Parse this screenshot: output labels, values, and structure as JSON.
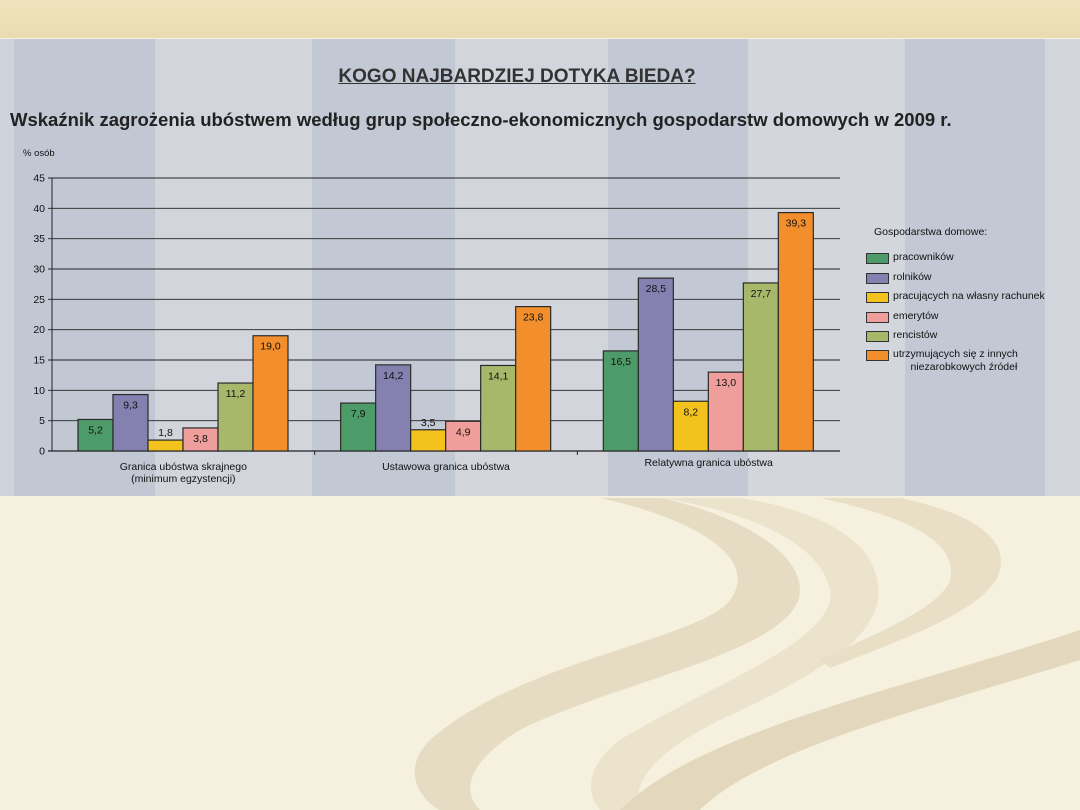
{
  "slide": {
    "headline": "KOGO NAJBARDZIEJ DOTYKA BIEDA?",
    "subtitle": "Wskaźnik zagrożenia ubóstwem według grup społeczno-ekonomicznych gospodarstw domowych w 2009 r."
  },
  "colors": {
    "background": "#f6f1de",
    "top_band": "#eadbb0",
    "panel": "#c6ccd7",
    "series": [
      "#4e9b6a",
      "#8480b0",
      "#f3c21c",
      "#f09e9c",
      "#a8b86a",
      "#f28f2c"
    ]
  },
  "chart_data": {
    "type": "bar",
    "title": "Wskaźnik zagrożenia ubóstwem według grup społeczno-ekonomicznych gospodarstw domowych w 2009 r.",
    "ylabel": "% osób",
    "ylim": [
      0,
      45
    ],
    "yticks": [
      "0",
      "5",
      "10",
      "15",
      "20",
      "25",
      "30",
      "35",
      "40",
      "45"
    ],
    "grid": true,
    "legend_position": "right",
    "legend_title": "Gospodarstwa domowe:",
    "categories": [
      [
        "Granica ubóstwa skrajnego",
        "(minimum egzystencji)"
      ],
      [
        "Ustawowa granica ubóstwa"
      ],
      [
        "Relatywna granica ubóstwa"
      ]
    ],
    "series": [
      {
        "name": "pracowników",
        "values": [
          5.2,
          7.9,
          16.5
        ],
        "labels": [
          "5,2",
          "7,9",
          "16,5"
        ]
      },
      {
        "name": "rolników",
        "values": [
          9.3,
          14.2,
          28.5
        ],
        "labels": [
          "9,3",
          "14,2",
          "28,5"
        ]
      },
      {
        "name": "pracujących na własny rachunek",
        "values": [
          1.8,
          3.5,
          8.2
        ],
        "labels": [
          "1,8",
          "3,5",
          "8,2"
        ]
      },
      {
        "name": "emerytów",
        "values": [
          3.8,
          4.9,
          13.0
        ],
        "labels": [
          "3,8",
          "4,9",
          "13,0"
        ]
      },
      {
        "name": "rencistów",
        "values": [
          11.2,
          14.1,
          27.7
        ],
        "labels": [
          "11,2",
          "14,1",
          "27,7"
        ]
      },
      {
        "name": "utrzymujących się z innych\n      niezarobkowych źródeł",
        "values": [
          19.0,
          23.8,
          39.3
        ],
        "labels": [
          "19,0",
          "23,8",
          "39,3"
        ]
      }
    ]
  }
}
